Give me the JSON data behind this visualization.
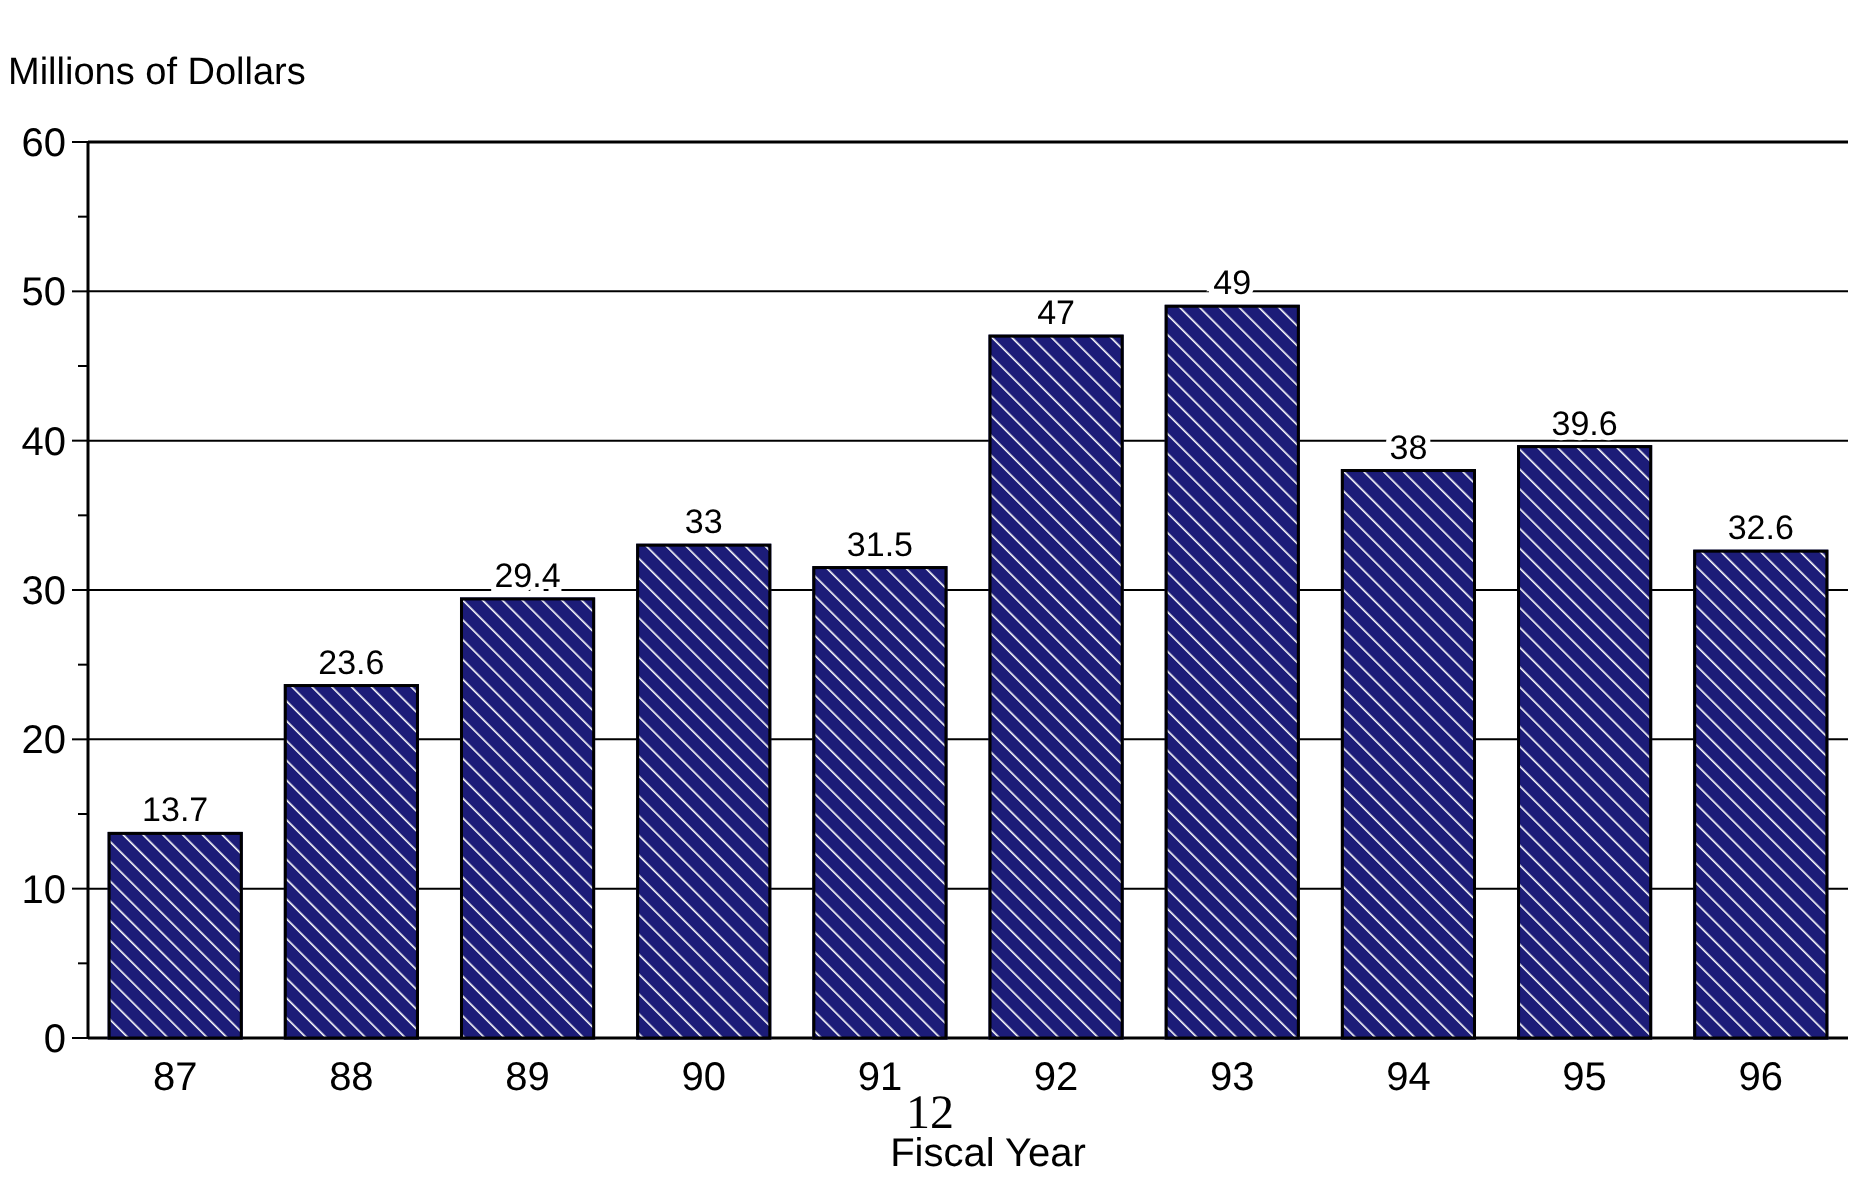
{
  "chart_data": {
    "type": "bar",
    "ylabel": "Millions of Dollars",
    "xlabel": "Fiscal Year",
    "categories": [
      "87",
      "88",
      "89",
      "90",
      "91",
      "92",
      "93",
      "94",
      "95",
      "96"
    ],
    "values": [
      13.7,
      23.6,
      29.4,
      33,
      31.5,
      47,
      49,
      38,
      39.6,
      32.6
    ],
    "color": "#1c1c78",
    "ylim": [
      0,
      60
    ],
    "yticks": [
      0,
      {
        "value": 5,
        "label": null
      },
      10,
      {
        "value": 15,
        "label": null
      },
      20,
      {
        "value": 25,
        "label": null
      },
      30,
      {
        "value": 35,
        "label": null
      },
      40,
      {
        "value": 45,
        "label": null
      },
      50,
      {
        "value": 55,
        "label": null
      },
      60
    ],
    "grid": "y",
    "data_labels": true,
    "annotations": [
      "12"
    ]
  }
}
